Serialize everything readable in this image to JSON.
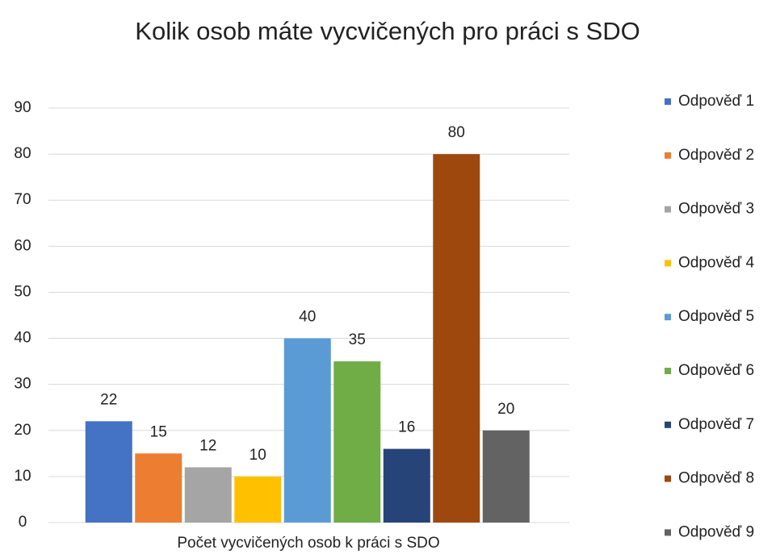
{
  "chart_data": {
    "type": "bar",
    "title": "Kolik osob máte vycvičených pro práci s SDO",
    "categories": [
      "Počet vycvičených osob k práci s SDO"
    ],
    "series": [
      {
        "name": "Odpověď 1",
        "color": "#4472c4",
        "values": [
          22
        ]
      },
      {
        "name": "Odpověď 2",
        "color": "#ed7d31",
        "values": [
          15
        ]
      },
      {
        "name": "Odpověď 3",
        "color": "#a5a5a5",
        "values": [
          12
        ]
      },
      {
        "name": "Odpověď 4",
        "color": "#ffc000",
        "values": [
          10
        ]
      },
      {
        "name": "Odpověď 5",
        "color": "#5b9bd5",
        "values": [
          40
        ]
      },
      {
        "name": "Odpověď 6",
        "color": "#70ad47",
        "values": [
          35
        ]
      },
      {
        "name": "Odpověď 7",
        "color": "#264478",
        "values": [
          16
        ]
      },
      {
        "name": "Odpověď 8",
        "color": "#9e480e",
        "values": [
          80
        ]
      },
      {
        "name": "Odpověď 9",
        "color": "#636363",
        "values": [
          20
        ]
      }
    ],
    "ylim": [
      0,
      90
    ],
    "yticks": [
      0,
      10,
      20,
      30,
      40,
      50,
      60,
      70,
      80,
      90
    ],
    "grid": true,
    "legend": "right"
  }
}
